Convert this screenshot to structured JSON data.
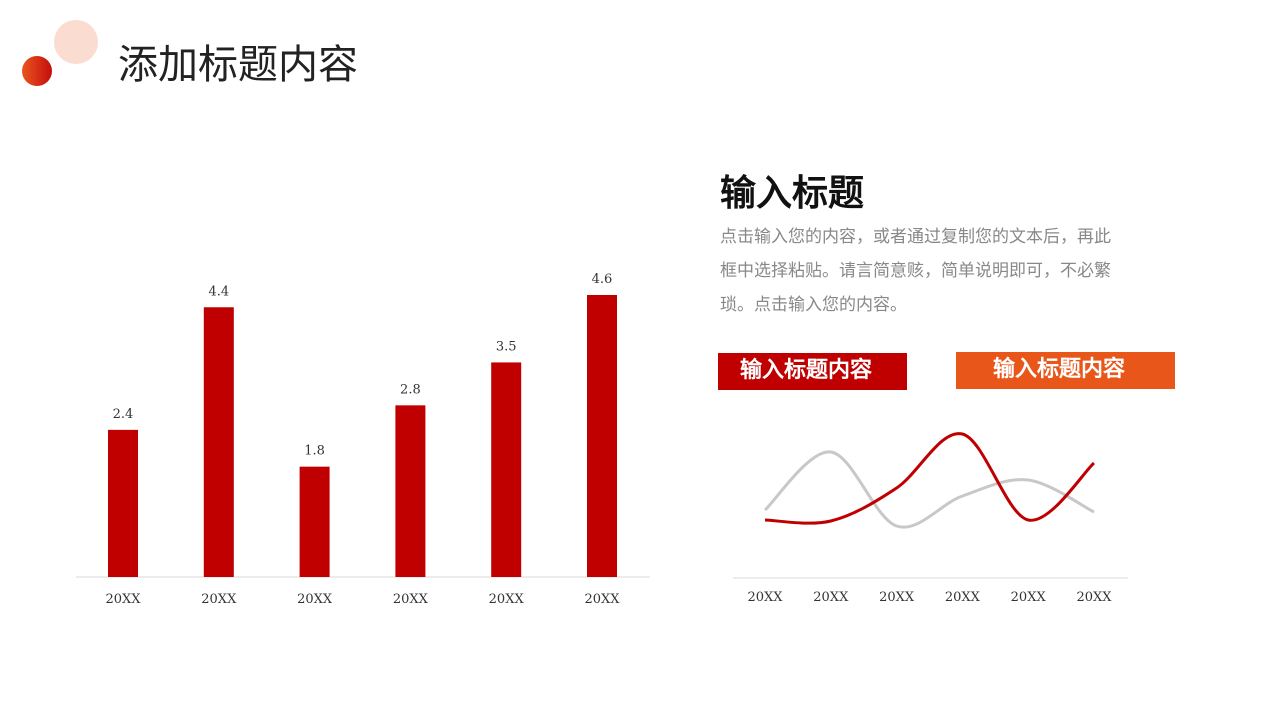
{
  "header": {
    "title": "添加标题内容"
  },
  "panel": {
    "title": "输入标题",
    "description": "点击输入您的内容，或者通过复制您的文本后，再此框中选择粘贴。请言简意赅，简单说明即可，不必繁琐。点击输入您的内容。",
    "tag1": "输入标题内容",
    "tag2": "输入标题内容"
  },
  "colors": {
    "accent": "#c00000",
    "orange": "#e8561a",
    "grey": "#c8c8c8"
  },
  "chart_data": [
    {
      "type": "bar",
      "categories": [
        "20XX",
        "20XX",
        "20XX",
        "20XX",
        "20XX",
        "20XX"
      ],
      "values": [
        2.4,
        4.4,
        1.8,
        2.8,
        3.5,
        4.6
      ],
      "data_labels": [
        "2.4",
        "4.4",
        "1.8",
        "2.8",
        "3.5",
        "4.6"
      ],
      "ylim": [
        0,
        4.6
      ],
      "grid": false,
      "color": "#c00000"
    },
    {
      "type": "line",
      "smooth": true,
      "categories": [
        "20XX",
        "20XX",
        "20XX",
        "20XX",
        "20XX",
        "20XX"
      ],
      "series": [
        {
          "values": [
            58,
            57,
            90,
            144,
            58,
            115
          ],
          "color": "#c00000"
        },
        {
          "values": [
            68,
            126,
            52,
            82,
            98,
            66
          ],
          "color": "#c8c8c8"
        }
      ],
      "ylim": [
        0,
        160
      ],
      "grid": false
    }
  ]
}
